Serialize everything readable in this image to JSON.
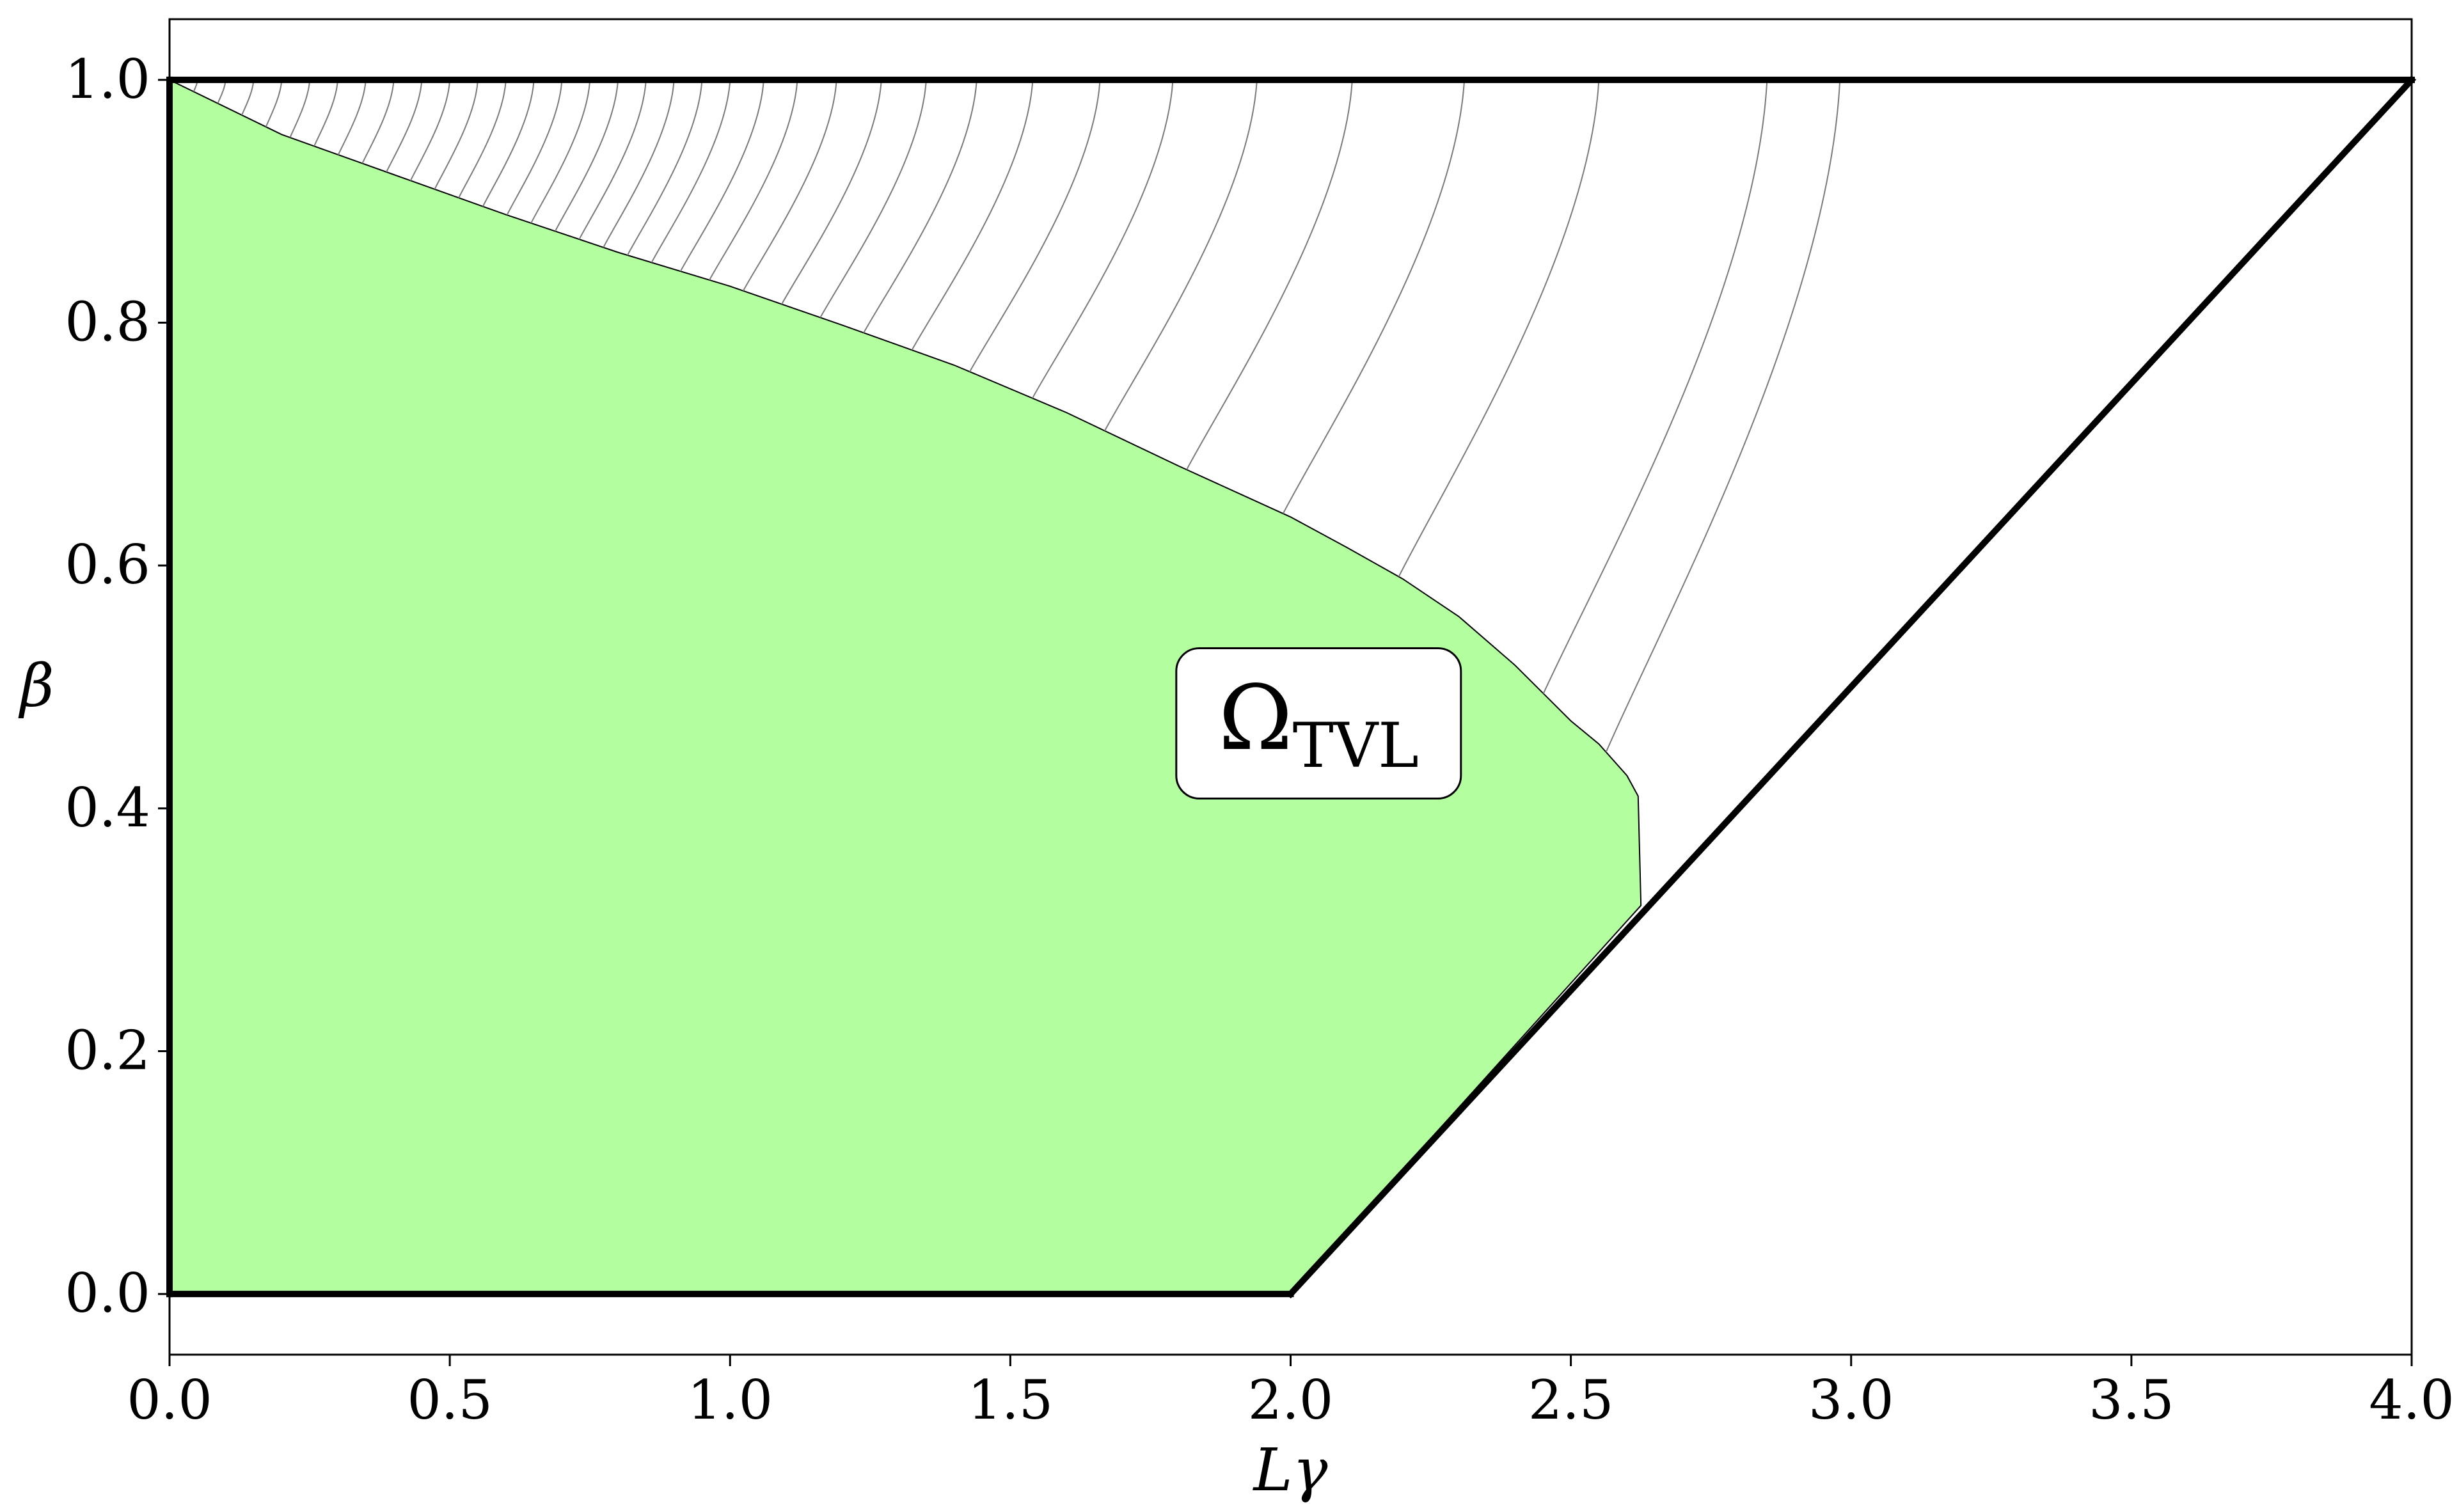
{
  "chart_data": {
    "type": "area",
    "xlabel": "Lγ",
    "ylabel": "β",
    "xlim": [
      0.0,
      4.0
    ],
    "ylim": [
      -0.05,
      1.05
    ],
    "xticks": [
      "0.0",
      "0.5",
      "1.0",
      "1.5",
      "2.0",
      "2.5",
      "3.0",
      "3.5",
      "4.0"
    ],
    "yticks": [
      "0.0",
      "0.2",
      "0.4",
      "0.6",
      "0.8",
      "1.0"
    ],
    "grid": false,
    "annotation": {
      "main": "Ω",
      "subscript": "TVL",
      "x": 2.05,
      "y": 0.47
    },
    "fill_color": "#b3ff9f",
    "region_boundary": [
      [
        0.0,
        1.0
      ],
      [
        0.2,
        0.955
      ],
      [
        0.4,
        0.922
      ],
      [
        0.6,
        0.889
      ],
      [
        0.8,
        0.858
      ],
      [
        1.0,
        0.83
      ],
      [
        1.2,
        0.798
      ],
      [
        1.4,
        0.765
      ],
      [
        1.6,
        0.726
      ],
      [
        1.8,
        0.682
      ],
      [
        2.0,
        0.64
      ],
      [
        2.1,
        0.615
      ],
      [
        2.2,
        0.589
      ],
      [
        2.3,
        0.558
      ],
      [
        2.4,
        0.518
      ],
      [
        2.5,
        0.472
      ],
      [
        2.55,
        0.453
      ],
      [
        2.6,
        0.427
      ],
      [
        2.62,
        0.41
      ],
      [
        2.625,
        0.32
      ],
      [
        2.0,
        0.0
      ],
      [
        0.0,
        0.0
      ]
    ],
    "constraint_lines": [
      {
        "name": "",
        "x": [
          0.0,
          4.0
        ],
        "y": [
          1.0,
          1.0
        ]
      },
      {
        "name": "",
        "x": [
          0.0,
          2.0
        ],
        "y": [
          0.0,
          0.0
        ]
      },
      {
        "name": "",
        "x": [
          2.0,
          4.0
        ],
        "y": [
          0.0,
          1.0
        ]
      },
      {
        "name": "",
        "x": [
          0.0,
          0.0
        ],
        "y": [
          0.0,
          1.0
        ]
      }
    ],
    "thin_curve_tops": [
      0.05,
      0.1,
      0.15,
      0.2,
      0.25,
      0.3,
      0.35,
      0.4,
      0.45,
      0.5,
      0.55,
      0.6,
      0.65,
      0.7,
      0.75,
      0.8,
      0.85,
      0.9,
      0.95,
      1.0,
      1.06,
      1.12,
      1.19,
      1.27,
      1.35,
      1.44,
      1.54,
      1.66,
      1.79,
      1.94,
      2.11,
      2.31,
      2.55,
      2.85,
      2.98
    ]
  }
}
